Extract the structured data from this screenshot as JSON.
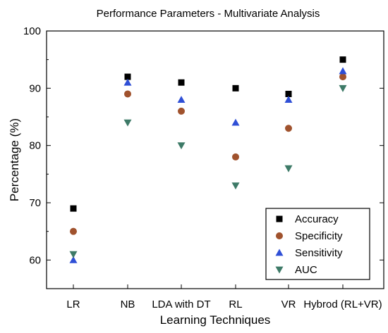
{
  "chart_data": {
    "type": "scatter",
    "title": "Performance Parameters - Multivariate Analysis",
    "xlabel": "Learning Techniques",
    "ylabel": "Percentage (%)",
    "categories": [
      "LR",
      "NB",
      "LDA with DT",
      "RL",
      "VR",
      "Hybrod (RL+VR)"
    ],
    "ylim": [
      55,
      100
    ],
    "yticks": [
      60,
      70,
      80,
      90,
      100
    ],
    "grid": false,
    "legend_position": "bottom-right",
    "series": [
      {
        "name": "Accuracy",
        "marker": "square",
        "color": "#000000",
        "values": [
          69,
          92,
          91,
          90,
          89,
          95
        ]
      },
      {
        "name": "Specificity",
        "marker": "circle",
        "color": "#a0522d",
        "values": [
          65,
          89,
          86,
          78,
          83,
          92
        ]
      },
      {
        "name": "Sensitivity",
        "marker": "triangle-up",
        "color": "#2f4fd6",
        "values": [
          60,
          91,
          88,
          84,
          88,
          93
        ]
      },
      {
        "name": "AUC",
        "marker": "triangle-down",
        "color": "#3d7a67",
        "values": [
          61,
          84,
          80,
          73,
          76,
          90
        ]
      }
    ]
  }
}
